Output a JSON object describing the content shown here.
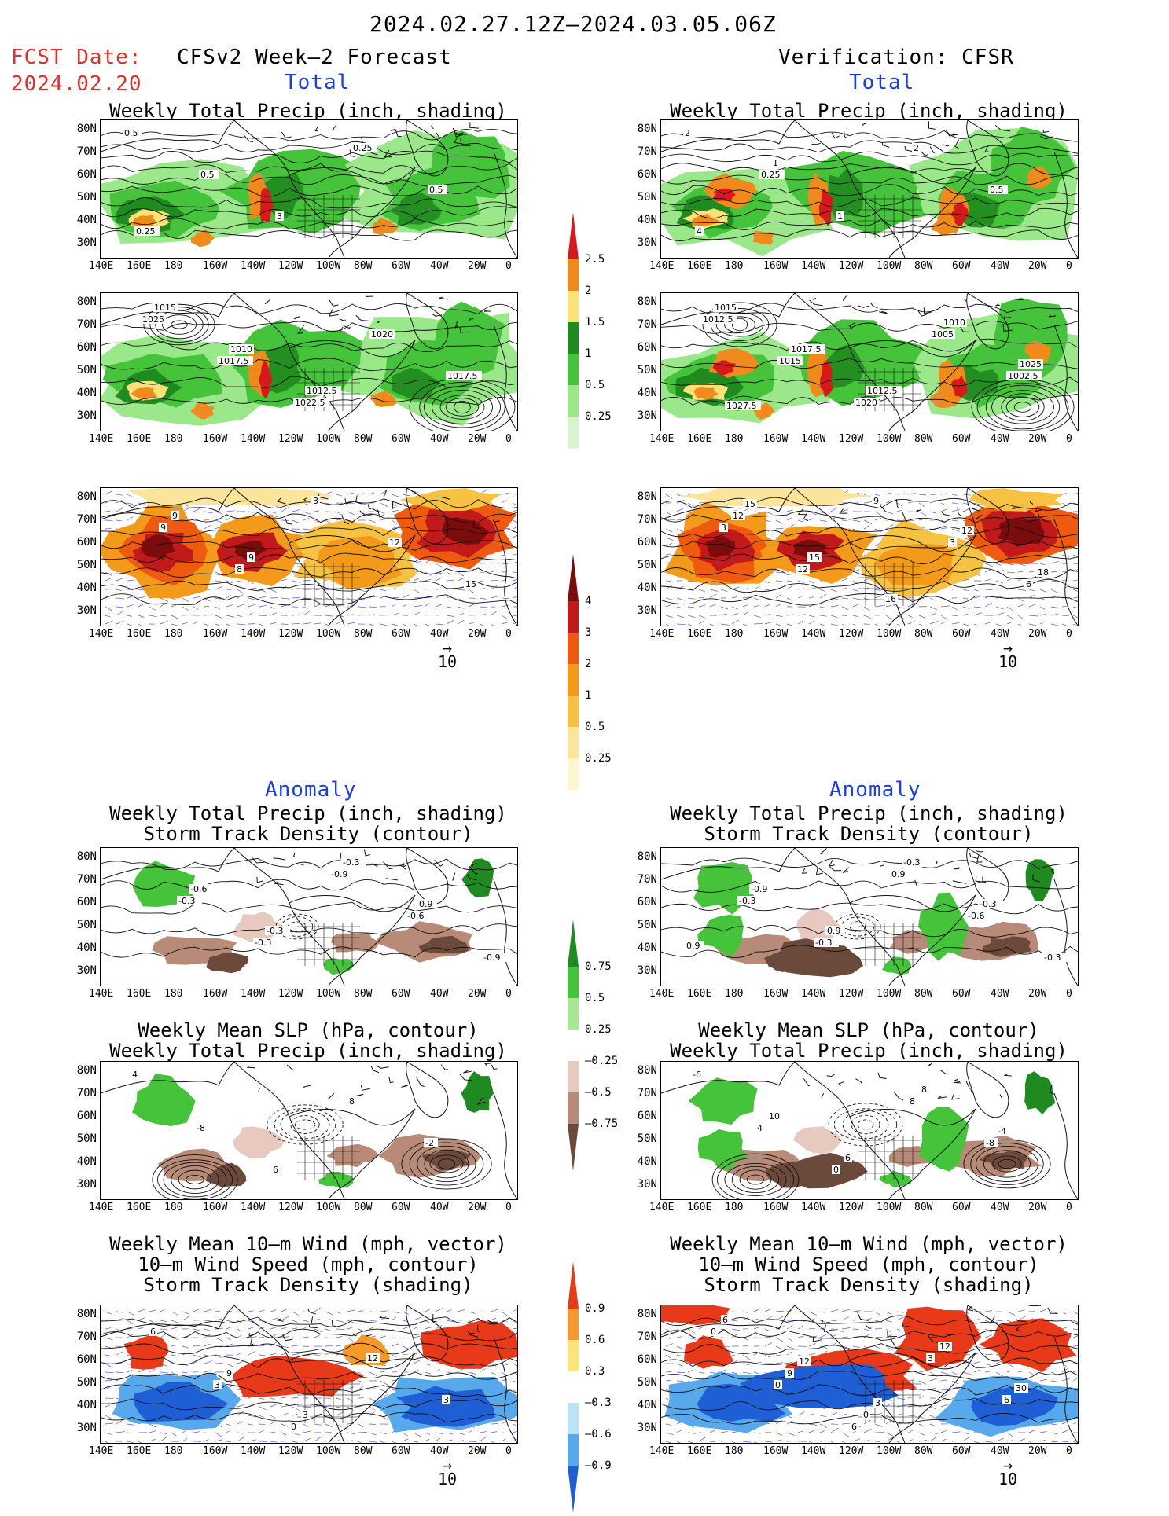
{
  "header": {
    "date_range": "2024.02.27.12Z—2024.03.05.06Z",
    "fcst_label": "FCST Date:",
    "fcst_date": "2024.02.20",
    "left_title": "CFSv2 Week—2 Forecast",
    "right_title": "Verification: CFSR"
  },
  "sections": {
    "total": "Total",
    "anomaly": "Anomaly"
  },
  "titles": {
    "precip_storm": [
      "Weekly Total Precip (inch, shading)",
      "Storm Track Density (contour)"
    ],
    "slp_precip": [
      "Weekly Mean SLP (hPa, contour)",
      "Weekly Total Precip (inch, shading)"
    ],
    "wind_storm": [
      "Weekly Mean 10—m Wind (mph, vector)",
      "10—m Wind Speed (mph, contour)",
      "Storm Track Density (shading)"
    ]
  },
  "axes": {
    "lat": [
      "80N",
      "70N",
      "60N",
      "50N",
      "40N",
      "30N"
    ],
    "lon": [
      "140E",
      "160E",
      "180",
      "160W",
      "140W",
      "120W",
      "100W",
      "80W",
      "60W",
      "40W",
      "20W",
      "0"
    ]
  },
  "vector_ref": "10",
  "colorbars": {
    "precip_total": {
      "labels": [
        "2.5",
        "2",
        "1.5",
        "1",
        "0.5",
        "0.25"
      ],
      "colors": [
        "#d7191c",
        "#f08a1c",
        "#fde27a",
        "#1f8a1f",
        "#45c33a",
        "#9be88a",
        "#d6f5cc"
      ]
    },
    "storm_total": {
      "labels": [
        "4",
        "3",
        "2",
        "1",
        "0.5",
        "0.25"
      ],
      "colors": [
        "#7a0c0c",
        "#c21a1a",
        "#ee5a10",
        "#f39a1a",
        "#f7c242",
        "#fbe59a",
        "#fdf6d0"
      ]
    },
    "precip_anom": {
      "labels": [
        "0.75",
        "0.5",
        "0.25",
        "—0.25",
        "—0.5",
        "—0.75"
      ],
      "colors": [
        "#1f8a1f",
        "#45c33a",
        "#a8e894",
        "#ffffff",
        "#e8c9bf",
        "#b88a78",
        "#6b4a3c"
      ]
    },
    "storm_anom": {
      "labels": [
        "0.9",
        "0.6",
        "0.3",
        "—0.3",
        "—0.6",
        "—0.9"
      ],
      "colors": [
        "#e83a18",
        "#f59a2a",
        "#fde37c",
        "#ffffff",
        "#b8e4f5",
        "#58a8ec",
        "#1f5fd6"
      ]
    }
  },
  "panel_labels": {
    "fc_total_precip": [
      "0.5",
      "0.5",
      "3",
      "0.25",
      "0.5",
      "0.25"
    ],
    "ver_total_precip": [
      "2",
      "0.25",
      "1",
      "2",
      "0.5",
      "4",
      "1"
    ],
    "fc_total_slp": [
      "1025",
      "1017.5",
      "1022.5",
      "1020",
      "1017.5",
      "1015",
      "1010",
      "1012.5"
    ],
    "ver_total_slp": [
      "1012.5",
      "1015",
      "1020",
      "1005",
      "1002.5",
      "1015",
      "1017.5",
      "1012.5",
      "1010",
      "1025",
      "1027.5"
    ],
    "fc_total_wind": [
      "9",
      "8",
      "3",
      "12",
      "15",
      "9",
      "9"
    ],
    "ver_total_wind": [
      "3",
      "12",
      "9",
      "3",
      "6",
      "12",
      "15",
      "16",
      "12",
      "18",
      "15"
    ],
    "fc_anom_precip": [
      "-0.3",
      "-0.3",
      "-0.9",
      "-0.6",
      "-0.9",
      "-0.6",
      "-0.3",
      "-0.3",
      "0.9"
    ],
    "ver_anom_precip": [
      "-0.3",
      "-0.3",
      "0.9",
      "-0.6",
      "-0.3",
      "-0.9",
      "0.9",
      "-0.3",
      "-0.3",
      "0.9"
    ],
    "fc_anom_slp": [
      "-8",
      "6",
      "8",
      "-2",
      "4"
    ],
    "ver_anom_slp": [
      "4",
      "0",
      "8",
      "-8",
      "-6",
      "10",
      "6",
      "8",
      "-4"
    ],
    "fc_anom_wind": [
      "3",
      "0",
      "12",
      "3",
      "6",
      "9",
      "3"
    ],
    "ver_anom_wind": [
      "0",
      "6",
      "3",
      "6",
      "0",
      "9",
      "0",
      "12",
      "30",
      "6",
      "12",
      "3"
    ]
  }
}
